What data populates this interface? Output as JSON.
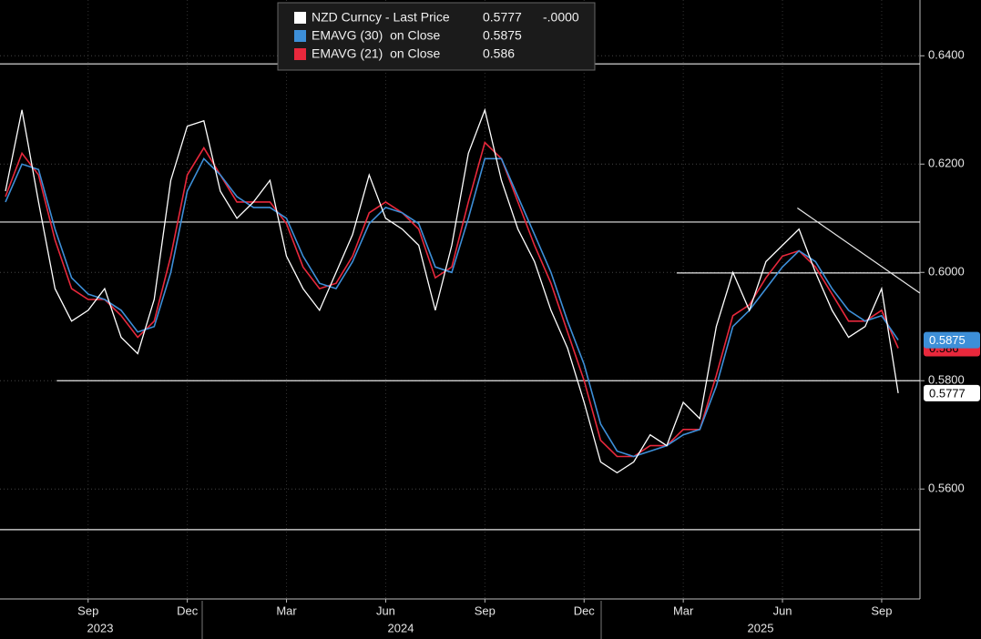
{
  "chart_data": {
    "type": "line",
    "categories": [
      null,
      null,
      null,
      null,
      null,
      "Sep",
      null,
      null,
      null,
      null,
      null,
      "Dec",
      null,
      null,
      null,
      null,
      null,
      "Mar",
      null,
      null,
      null,
      null,
      null,
      "Jun",
      null,
      null,
      null,
      null,
      null,
      "Sep",
      null,
      null,
      null,
      null,
      null,
      "Dec",
      null,
      null,
      null,
      null,
      null,
      "Mar",
      null,
      null,
      null,
      null,
      null,
      "Jun",
      null,
      null,
      null,
      null,
      null,
      "Sep",
      null
    ],
    "years": [
      "2023",
      "2024",
      "2025"
    ],
    "series": [
      {
        "name": "NZD Curncy - Last Price",
        "color": "#ffffff",
        "change": "-.0000",
        "values": [
          0.615,
          0.63,
          0.613,
          0.597,
          0.591,
          0.593,
          0.597,
          0.588,
          0.585,
          0.595,
          0.617,
          0.627,
          0.628,
          0.615,
          0.61,
          0.613,
          0.617,
          0.603,
          0.597,
          0.593,
          0.6,
          0.607,
          0.618,
          0.61,
          0.608,
          0.605,
          0.593,
          0.605,
          0.622,
          0.63,
          0.617,
          0.608,
          0.602,
          0.593,
          0.586,
          0.576,
          0.565,
          0.563,
          0.565,
          0.57,
          0.568,
          0.576,
          0.573,
          0.59,
          0.6,
          0.593,
          0.602,
          0.605,
          0.608,
          0.6,
          0.593,
          0.588,
          0.59,
          0.597,
          0.5777
        ]
      },
      {
        "name": "EMAVG (30)  on Close",
        "color": "#3d8fd8",
        "values": [
          0.613,
          0.62,
          0.619,
          0.608,
          0.599,
          0.596,
          0.595,
          0.593,
          0.589,
          0.59,
          0.6,
          0.615,
          0.621,
          0.618,
          0.614,
          0.612,
          0.612,
          0.61,
          0.603,
          0.598,
          0.597,
          0.602,
          0.609,
          0.612,
          0.611,
          0.609,
          0.601,
          0.6,
          0.61,
          0.621,
          0.621,
          0.614,
          0.607,
          0.6,
          0.591,
          0.583,
          0.572,
          0.567,
          0.566,
          0.567,
          0.568,
          0.57,
          0.571,
          0.579,
          0.59,
          0.593,
          0.597,
          0.601,
          0.604,
          0.602,
          0.597,
          0.593,
          0.591,
          0.592,
          0.5875
        ]
      },
      {
        "name": "EMAVG (21)  on Close",
        "color": "#e8283c",
        "values": [
          0.614,
          0.622,
          0.618,
          0.606,
          0.597,
          0.595,
          0.595,
          0.592,
          0.588,
          0.591,
          0.603,
          0.618,
          0.623,
          0.618,
          0.613,
          0.613,
          0.613,
          0.609,
          0.601,
          0.597,
          0.598,
          0.603,
          0.611,
          0.613,
          0.611,
          0.608,
          0.599,
          0.601,
          0.613,
          0.624,
          0.621,
          0.613,
          0.605,
          0.598,
          0.589,
          0.58,
          0.569,
          0.566,
          0.566,
          0.568,
          0.568,
          0.571,
          0.571,
          0.581,
          0.592,
          0.594,
          0.599,
          0.603,
          0.604,
          0.601,
          0.596,
          0.591,
          0.591,
          0.593,
          0.586
        ]
      }
    ],
    "ylim": [
      0.5397,
      0.6503
    ],
    "yticks": [
      {
        "value": 0.56,
        "label": "0.5600"
      },
      {
        "value": 0.58,
        "label": "0.5800"
      },
      {
        "value": 0.6,
        "label": "0.6000"
      },
      {
        "value": 0.62,
        "label": "0.6200"
      },
      {
        "value": 0.64,
        "label": "0.6400"
      }
    ],
    "grid": true,
    "annotations": [
      {
        "type": "hline",
        "y": 0.6385
      },
      {
        "type": "hline",
        "y": 0.6093
      },
      {
        "type": "hline",
        "y": 0.5999,
        "x_start": 40.6
      },
      {
        "type": "hline",
        "y": 0.58,
        "x_start": 3.1
      },
      {
        "type": "hline",
        "y": 0.5525
      },
      {
        "type": "trend",
        "x": [
          47.9,
          55.3
        ],
        "y": [
          0.6119,
          0.5962
        ]
      }
    ]
  }
}
